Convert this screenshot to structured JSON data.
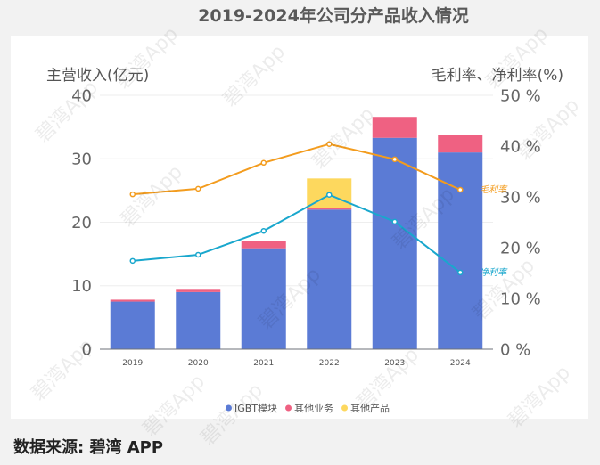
{
  "colors": {
    "background": "#f2f2f2",
    "panel": "#ffffff"
  },
  "watermark": "碧湾App",
  "source": "数据来源: 碧湾 APP",
  "chart_data": {
    "type": "bar",
    "stacked": true,
    "title": "2019-2024年公司分产品收入情况",
    "categories": [
      "2019",
      "2020",
      "2021",
      "2022",
      "2023",
      "2024"
    ],
    "ylabel": "主营收入(亿元)",
    "y2label": "毛利率、净利率(%)",
    "ylim": [
      0,
      40
    ],
    "y2lim": [
      0,
      50
    ],
    "yticks": [
      "0",
      "10",
      "20",
      "30",
      "40"
    ],
    "y2ticks": [
      "0 %",
      "10 %",
      "20 %",
      "30 %",
      "40 %",
      "50 %"
    ],
    "grid": true,
    "legend": "bottom",
    "series": [
      {
        "name": "IGBT模块",
        "type": "bar",
        "axis": "left",
        "in_legend": true,
        "color": "#5b7bd5",
        "values": [
          7.5,
          9.0,
          15.9,
          22.0,
          33.3,
          31.0
        ]
      },
      {
        "name": "其他业务",
        "type": "bar",
        "axis": "left",
        "in_legend": true,
        "color": "#ef6182",
        "values": [
          0.3,
          0.5,
          1.2,
          0.3,
          3.3,
          2.8
        ]
      },
      {
        "name": "其他产品",
        "type": "bar",
        "axis": "left",
        "in_legend": true,
        "color": "#fdd85e",
        "values": [
          0,
          0,
          0,
          4.6,
          0,
          0
        ]
      },
      {
        "name": "毛利率",
        "type": "line",
        "axis": "right",
        "in_legend": false,
        "label_at_end": true,
        "color": "#f39c1e",
        "values": [
          30.5,
          31.6,
          36.7,
          40.4,
          37.4,
          31.4
        ]
      },
      {
        "name": "净利率",
        "type": "line",
        "axis": "right",
        "in_legend": false,
        "label_at_end": true,
        "color": "#19a7cd",
        "values": [
          17.4,
          18.6,
          23.3,
          30.4,
          25.1,
          15.1
        ]
      }
    ]
  }
}
